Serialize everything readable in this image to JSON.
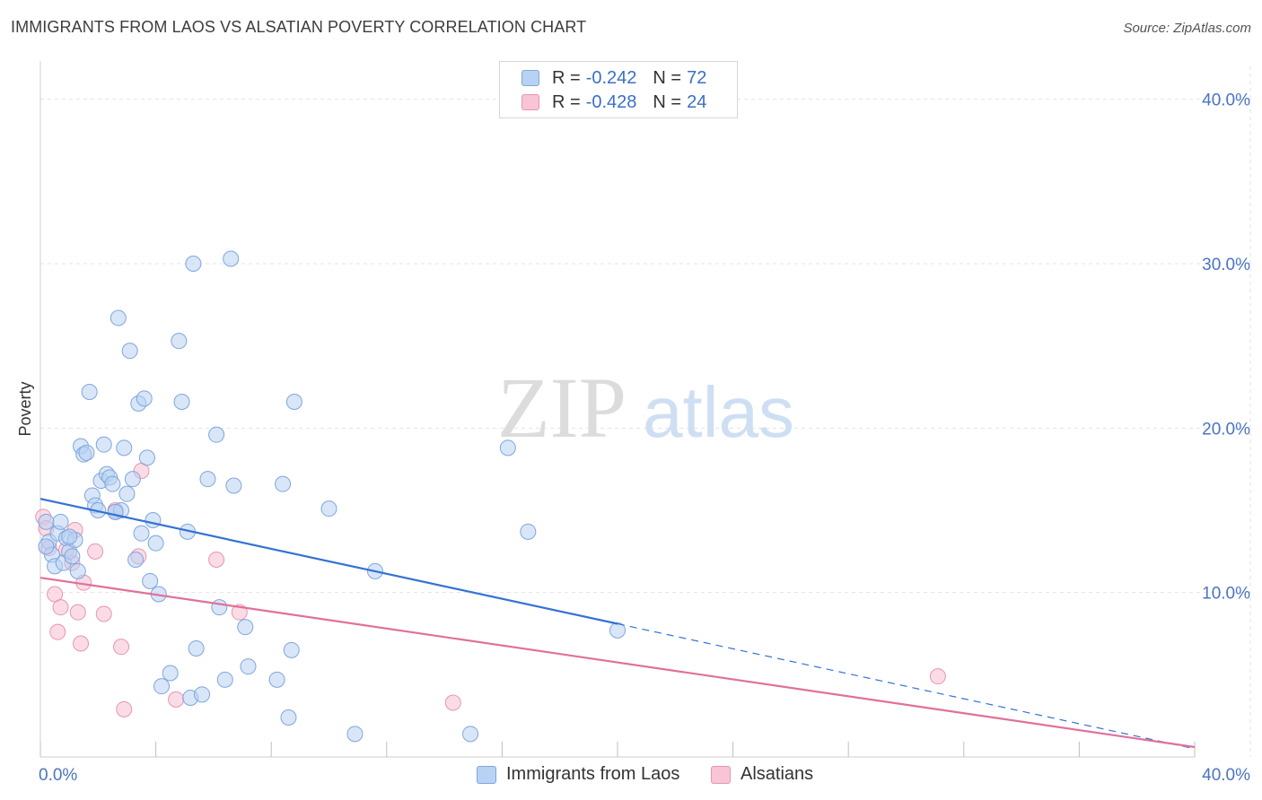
{
  "title": "IMMIGRANTS FROM LAOS VS ALSATIAN POVERTY CORRELATION CHART",
  "source": "Source: ZipAtlas.com",
  "watermark": {
    "zip": "ZIP",
    "atlas": "atlas"
  },
  "legend": {
    "rows": [
      {
        "r_label": "R =",
        "r_value": "-0.242",
        "n_label": "N =",
        "n_value": "72"
      },
      {
        "r_label": "R =",
        "r_value": "-0.428",
        "n_label": "N =",
        "n_value": "24"
      }
    ]
  },
  "colors": {
    "series1_fill": "#b8d2f3",
    "series1_stroke": "#7fa6dc",
    "series1_line": "#3372d4",
    "series2_fill": "#f8c4d6",
    "series2_stroke": "#e795b2",
    "series2_line": "#e0709b",
    "grid": "#e3e3e3",
    "tick_text": "#4a74c2"
  },
  "chart_data": {
    "type": "scatter",
    "title": "IMMIGRANTS FROM LAOS VS ALSATIAN POVERTY CORRELATION CHART",
    "xlabel": "",
    "ylabel": "Poverty",
    "xlim": [
      0,
      40
    ],
    "ylim": [
      0,
      42
    ],
    "x_tick_labels": [
      "0.0%",
      "40.0%"
    ],
    "y_ticks": [
      10,
      20,
      30,
      40
    ],
    "y_tick_labels": [
      "10.0%",
      "20.0%",
      "30.0%",
      "40.0%"
    ],
    "grid": true,
    "legend_position": "top-center",
    "series": [
      {
        "name": "Immigrants from Laos",
        "r": -0.242,
        "n": 72,
        "trend": {
          "x0": 0,
          "y0": 15.7,
          "x1": 20,
          "y1": 8.1,
          "dashed_to_x": 40,
          "dashed_to_y": 0.5
        },
        "points": [
          [
            0.2,
            14.3
          ],
          [
            0.3,
            13.1
          ],
          [
            0.4,
            12.3
          ],
          [
            0.5,
            11.6
          ],
          [
            0.6,
            13.6
          ],
          [
            0.7,
            14.3
          ],
          [
            0.8,
            11.8
          ],
          [
            0.9,
            13.3
          ],
          [
            1.0,
            12.5
          ],
          [
            1.1,
            12.2
          ],
          [
            1.2,
            13.2
          ],
          [
            1.3,
            11.3
          ],
          [
            1.4,
            18.9
          ],
          [
            1.5,
            18.4
          ],
          [
            1.6,
            18.5
          ],
          [
            1.7,
            22.2
          ],
          [
            1.8,
            15.9
          ],
          [
            1.9,
            15.3
          ],
          [
            2.0,
            15.0
          ],
          [
            2.1,
            16.8
          ],
          [
            2.2,
            19.0
          ],
          [
            2.3,
            17.2
          ],
          [
            2.4,
            17.0
          ],
          [
            2.5,
            16.6
          ],
          [
            2.6,
            14.9
          ],
          [
            2.7,
            26.7
          ],
          [
            2.8,
            15.0
          ],
          [
            2.9,
            18.8
          ],
          [
            3.0,
            16.0
          ],
          [
            3.1,
            24.7
          ],
          [
            3.2,
            16.9
          ],
          [
            3.3,
            12.0
          ],
          [
            3.4,
            21.5
          ],
          [
            3.5,
            13.6
          ],
          [
            3.6,
            21.8
          ],
          [
            3.7,
            18.2
          ],
          [
            3.8,
            10.7
          ],
          [
            3.9,
            14.4
          ],
          [
            4.0,
            13.0
          ],
          [
            4.1,
            9.9
          ],
          [
            4.2,
            4.3
          ],
          [
            4.5,
            5.1
          ],
          [
            4.8,
            25.3
          ],
          [
            4.9,
            21.6
          ],
          [
            5.1,
            13.7
          ],
          [
            5.2,
            3.6
          ],
          [
            5.3,
            30.0
          ],
          [
            5.4,
            6.6
          ],
          [
            5.6,
            3.8
          ],
          [
            5.8,
            16.9
          ],
          [
            6.1,
            19.6
          ],
          [
            6.2,
            9.1
          ],
          [
            6.4,
            4.7
          ],
          [
            6.6,
            30.3
          ],
          [
            6.7,
            16.5
          ],
          [
            7.1,
            7.9
          ],
          [
            7.2,
            5.5
          ],
          [
            8.2,
            4.7
          ],
          [
            8.4,
            16.6
          ],
          [
            8.6,
            2.4
          ],
          [
            8.7,
            6.5
          ],
          [
            8.8,
            21.6
          ],
          [
            10.0,
            15.1
          ],
          [
            10.9,
            1.4
          ],
          [
            11.6,
            11.3
          ],
          [
            14.9,
            1.4
          ],
          [
            16.2,
            18.8
          ],
          [
            16.9,
            13.7
          ],
          [
            20.0,
            7.7
          ],
          [
            0.2,
            12.8
          ],
          [
            1.0,
            13.4
          ],
          [
            2.6,
            14.9
          ]
        ]
      },
      {
        "name": "Alsatians",
        "r": -0.428,
        "n": 24,
        "trend": {
          "x0": 0,
          "y0": 10.9,
          "x1": 40,
          "y1": 0.6
        },
        "points": [
          [
            0.1,
            14.6
          ],
          [
            0.3,
            12.7
          ],
          [
            0.5,
            9.9
          ],
          [
            0.6,
            7.6
          ],
          [
            0.7,
            9.1
          ],
          [
            0.9,
            12.6
          ],
          [
            1.1,
            11.8
          ],
          [
            1.2,
            13.8
          ],
          [
            1.3,
            8.8
          ],
          [
            1.4,
            6.9
          ],
          [
            1.5,
            10.6
          ],
          [
            1.9,
            12.5
          ],
          [
            2.2,
            8.7
          ],
          [
            2.6,
            15.0
          ],
          [
            2.8,
            6.7
          ],
          [
            2.9,
            2.9
          ],
          [
            3.4,
            12.2
          ],
          [
            3.5,
            17.4
          ],
          [
            4.7,
            3.5
          ],
          [
            6.1,
            12.0
          ],
          [
            6.9,
            8.8
          ],
          [
            14.3,
            3.3
          ],
          [
            31.1,
            4.9
          ],
          [
            0.2,
            13.9
          ]
        ]
      }
    ]
  }
}
